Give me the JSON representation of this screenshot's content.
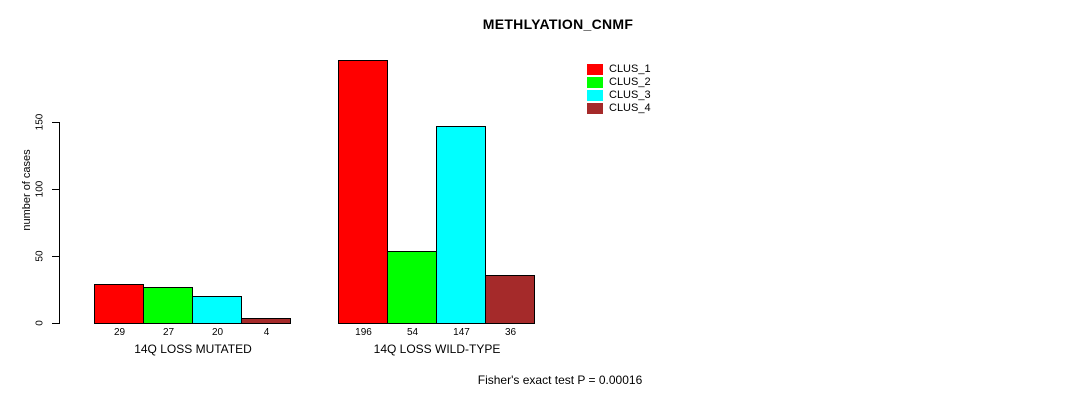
{
  "chart_data": {
    "type": "bar",
    "title": "METHLYATION_CNMF",
    "ylabel": "number of cases",
    "xlabel": "",
    "categories": [
      "14Q LOSS MUTATED",
      "14Q LOSS WILD-TYPE"
    ],
    "series": [
      {
        "name": "CLUS_1",
        "color": "#FF0000",
        "values": [
          29,
          196
        ]
      },
      {
        "name": "CLUS_2",
        "color": "#00FF00",
        "values": [
          27,
          54
        ]
      },
      {
        "name": "CLUS_3",
        "color": "#00FFFF",
        "values": [
          20,
          147
        ]
      },
      {
        "name": "CLUS_4",
        "color": "#A52A2A",
        "values": [
          4,
          36
        ]
      }
    ],
    "yticks": [
      0,
      50,
      100,
      150
    ],
    "ylim": [
      0,
      198
    ],
    "grid": false,
    "legend_position": "top-right",
    "bar_value_labels_shown": true,
    "annotation": "Fisher's exact test P = 0.00016"
  }
}
